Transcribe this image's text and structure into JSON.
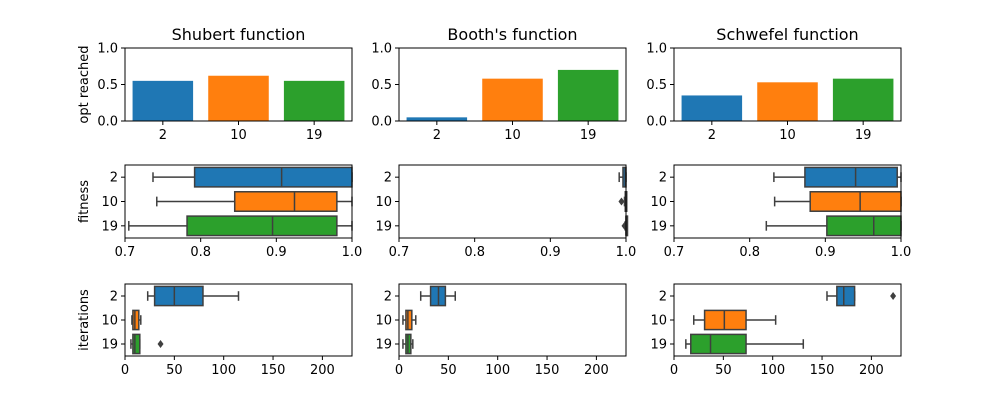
{
  "colors": [
    "#1f77b4",
    "#ff7f0e",
    "#2ca02c"
  ],
  "categories": [
    "2",
    "10",
    "19"
  ],
  "row_labels": [
    "opt reached",
    "fitness",
    "iterations"
  ],
  "chart_data": [
    {
      "type": "bar",
      "panel": "shubert-opt",
      "title": "Shubert function",
      "ylabel": "opt reached",
      "categories": [
        "2",
        "10",
        "19"
      ],
      "values": [
        0.55,
        0.62,
        0.55
      ],
      "ylim": [
        0,
        1
      ],
      "yticks": [
        "0.0",
        "0.5",
        "1.0"
      ]
    },
    {
      "type": "bar",
      "panel": "booth-opt",
      "title": "Booth's function",
      "categories": [
        "2",
        "10",
        "19"
      ],
      "values": [
        0.05,
        0.58,
        0.7
      ],
      "ylim": [
        0,
        1
      ],
      "yticks": [
        "0.0",
        "0.5",
        "1.0"
      ]
    },
    {
      "type": "bar",
      "panel": "schwefel-opt",
      "title": "Schwefel function",
      "categories": [
        "2",
        "10",
        "19"
      ],
      "values": [
        0.35,
        0.53,
        0.58
      ],
      "ylim": [
        0,
        1
      ],
      "yticks": [
        "0.0",
        "0.5",
        "1.0"
      ]
    },
    {
      "type": "boxplot",
      "panel": "shubert-fitness",
      "ylabel": "fitness",
      "xlim": [
        0.7,
        1.0
      ],
      "xticks": [
        "0.7",
        "0.8",
        "0.9",
        "1.0"
      ],
      "categories": [
        "2",
        "10",
        "19"
      ],
      "boxes": [
        {
          "whislo": 0.737,
          "q1": 0.792,
          "med": 0.907,
          "q3": 1.0,
          "whishi": 1.0,
          "fliers": []
        },
        {
          "whislo": 0.742,
          "q1": 0.845,
          "med": 0.924,
          "q3": 0.98,
          "whishi": 1.0,
          "fliers": []
        },
        {
          "whislo": 0.705,
          "q1": 0.782,
          "med": 0.895,
          "q3": 0.98,
          "whishi": 1.0,
          "fliers": []
        }
      ]
    },
    {
      "type": "boxplot",
      "panel": "booth-fitness",
      "xlim": [
        0.7,
        1.0
      ],
      "xticks": [
        "0.7",
        "0.8",
        "0.9",
        "1.0"
      ],
      "categories": [
        "2",
        "10",
        "19"
      ],
      "boxes": [
        {
          "whislo": 0.991,
          "q1": 0.996,
          "med": 0.999,
          "q3": 1.0,
          "whishi": 1.0,
          "fliers": []
        },
        {
          "whislo": 0.998,
          "q1": 0.999,
          "med": 1.0,
          "q3": 1.0,
          "whishi": 1.0,
          "fliers": [
            0.994
          ]
        },
        {
          "whislo": 0.999,
          "q1": 1.0,
          "med": 1.0,
          "q3": 1.0,
          "whishi": 1.0,
          "fliers": [
            0.998
          ]
        }
      ]
    },
    {
      "type": "boxplot",
      "panel": "schwefel-fitness",
      "xlim": [
        0.7,
        1.0
      ],
      "xticks": [
        "0.7",
        "0.8",
        "0.9",
        "1.0"
      ],
      "categories": [
        "2",
        "10",
        "19"
      ],
      "boxes": [
        {
          "whislo": 0.832,
          "q1": 0.873,
          "med": 0.94,
          "q3": 0.995,
          "whishi": 1.0,
          "fliers": []
        },
        {
          "whislo": 0.833,
          "q1": 0.88,
          "med": 0.946,
          "q3": 1.0,
          "whishi": 1.0,
          "fliers": []
        },
        {
          "whislo": 0.822,
          "q1": 0.902,
          "med": 0.964,
          "q3": 1.0,
          "whishi": 1.0,
          "fliers": []
        }
      ]
    },
    {
      "type": "boxplot",
      "panel": "shubert-iterations",
      "ylabel": "iterations",
      "xlim": [
        0,
        230
      ],
      "xticks": [
        "0",
        "50",
        "100",
        "150",
        "200"
      ],
      "categories": [
        "2",
        "10",
        "19"
      ],
      "boxes": [
        {
          "whislo": 23,
          "q1": 30,
          "med": 50,
          "q3": 79,
          "whishi": 115,
          "fliers": []
        },
        {
          "whislo": 7,
          "q1": 8,
          "med": 10,
          "q3": 14,
          "whishi": 16,
          "fliers": []
        },
        {
          "whislo": 6,
          "q1": 8,
          "med": 10,
          "q3": 15,
          "whishi": 15,
          "fliers": [
            36
          ]
        }
      ]
    },
    {
      "type": "boxplot",
      "panel": "booth-iterations",
      "xlim": [
        0,
        230
      ],
      "xticks": [
        "0",
        "50",
        "100",
        "150",
        "200"
      ],
      "categories": [
        "2",
        "10",
        "19"
      ],
      "boxes": [
        {
          "whislo": 22,
          "q1": 32,
          "med": 40,
          "q3": 47,
          "whishi": 57,
          "fliers": []
        },
        {
          "whislo": 4,
          "q1": 7,
          "med": 9,
          "q3": 13,
          "whishi": 17,
          "fliers": []
        },
        {
          "whislo": 4,
          "q1": 7,
          "med": 9,
          "q3": 12,
          "whishi": 14,
          "fliers": []
        }
      ]
    },
    {
      "type": "boxplot",
      "panel": "schwefel-iterations",
      "xlim": [
        0,
        230
      ],
      "xticks": [
        "0",
        "50",
        "100",
        "150",
        "200"
      ],
      "categories": [
        "2",
        "10",
        "19"
      ],
      "boxes": [
        {
          "whislo": 155,
          "q1": 165,
          "med": 172,
          "q3": 183,
          "whishi": 183,
          "fliers": [
            222
          ]
        },
        {
          "whislo": 20,
          "q1": 31,
          "med": 51,
          "q3": 73,
          "whishi": 103,
          "fliers": []
        },
        {
          "whislo": 12,
          "q1": 17,
          "med": 37,
          "q3": 73,
          "whishi": 131,
          "fliers": []
        }
      ]
    }
  ]
}
